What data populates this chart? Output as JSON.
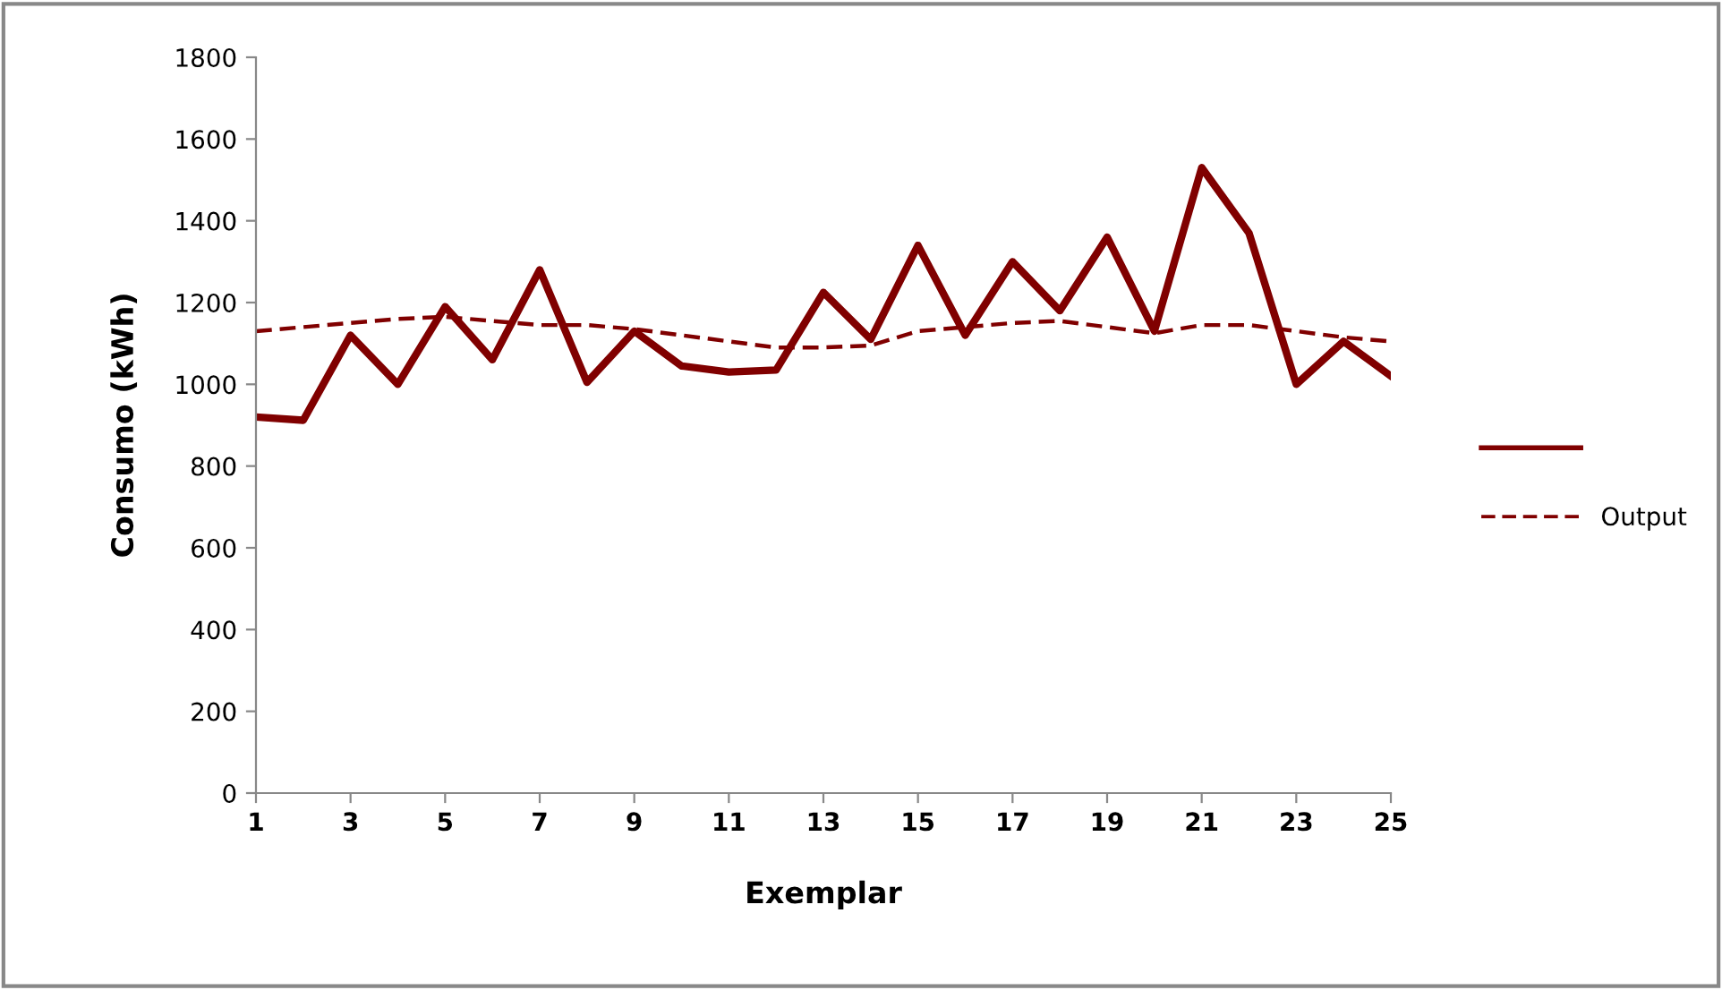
{
  "chart_data": {
    "type": "line",
    "xlabel": "Exemplar",
    "ylabel": "Consumo (kWh)",
    "x": [
      1,
      2,
      3,
      4,
      5,
      6,
      7,
      8,
      9,
      10,
      11,
      12,
      13,
      14,
      15,
      16,
      17,
      18,
      19,
      20,
      21,
      22,
      23,
      24,
      25
    ],
    "xlim": [
      1,
      25
    ],
    "xticks": [
      1,
      3,
      5,
      7,
      9,
      11,
      13,
      15,
      17,
      19,
      21,
      23,
      25
    ],
    "ylim": [
      0,
      1800
    ],
    "yticks": [
      0,
      200,
      400,
      600,
      800,
      1000,
      1200,
      1400,
      1600,
      1800
    ],
    "grid": false,
    "legend": "right",
    "marker": "none",
    "series": [
      {
        "color": "#800000",
        "line_style": "solid",
        "values": [
          920,
          912,
          1120,
          1000,
          1190,
          1060,
          1280,
          1005,
          1130,
          1045,
          1030,
          1035,
          1225,
          1110,
          1340,
          1120,
          1300,
          1180,
          1360,
          1130,
          1530,
          1370,
          1000,
          1105,
          1020
        ]
      },
      {
        "name": "Output",
        "color": "#800000",
        "line_style": "dashed",
        "values": [
          1130,
          1140,
          1150,
          1160,
          1165,
          1155,
          1145,
          1145,
          1135,
          1120,
          1105,
          1090,
          1090,
          1095,
          1130,
          1140,
          1150,
          1155,
          1140,
          1125,
          1145,
          1145,
          1130,
          1115,
          1105
        ]
      }
    ]
  }
}
